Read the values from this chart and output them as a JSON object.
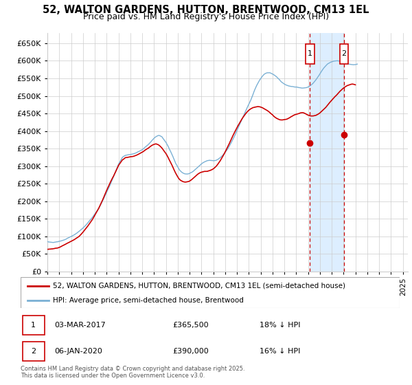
{
  "title": "52, WALTON GARDENS, HUTTON, BRENTWOOD, CM13 1EL",
  "subtitle": "Price paid vs. HM Land Registry's House Price Index (HPI)",
  "ylim": [
    0,
    680000
  ],
  "yticks": [
    0,
    50000,
    100000,
    150000,
    200000,
    250000,
    300000,
    350000,
    400000,
    450000,
    500000,
    550000,
    600000,
    650000
  ],
  "xmin": 1995.0,
  "xmax": 2025.42,
  "marker1_date": 2017.163,
  "marker2_date": 2020.016,
  "marker1_price": 365500,
  "marker2_price": 390000,
  "annotation1": [
    "1",
    "03-MAR-2017",
    "£365,500",
    "18% ↓ HPI"
  ],
  "annotation2": [
    "2",
    "06-JAN-2020",
    "£390,000",
    "16% ↓ HPI"
  ],
  "legend_line1": "52, WALTON GARDENS, HUTTON, BRENTWOOD, CM13 1EL (semi-detached house)",
  "legend_line2": "HPI: Average price, semi-detached house, Brentwood",
  "footer": "Contains HM Land Registry data © Crown copyright and database right 2025.\nThis data is licensed under the Open Government Licence v3.0.",
  "line_color_red": "#cc0000",
  "line_color_blue": "#7ab0d4",
  "shade_color": "#ddeeff",
  "grid_color": "#cccccc",
  "background_color": "#ffffff",
  "hpi_smooth": {
    "x_start": 1995.0,
    "x_step": 0.08333,
    "y": [
      85000,
      84000,
      83500,
      83000,
      82500,
      82000,
      81500,
      82000,
      82500,
      83000,
      83500,
      84000,
      85000,
      86000,
      87000,
      88000,
      89000,
      90000,
      91500,
      93000,
      94500,
      96000,
      97500,
      99000,
      100500,
      102000,
      103500,
      105000,
      107000,
      109000,
      111000,
      113000,
      115000,
      117500,
      120000,
      122500,
      125000,
      128000,
      131000,
      134000,
      137000,
      140500,
      144000,
      147500,
      151000,
      154500,
      158000,
      162000,
      166000,
      170000,
      174000,
      178000,
      182000,
      187500,
      193000,
      198500,
      204000,
      210000,
      216000,
      222000,
      228000,
      234000,
      240000,
      246000,
      252500,
      259000,
      265500,
      272000,
      279000,
      286000,
      293000,
      300000,
      307000,
      312000,
      317000,
      322000,
      327000,
      329000,
      331000,
      333000,
      333500,
      334000,
      334500,
      335000,
      335500,
      336000,
      336500,
      337000,
      338000,
      339000,
      340000,
      341500,
      343000,
      344500,
      346000,
      347500,
      349000,
      351500,
      354000,
      356500,
      359000,
      361500,
      364000,
      367000,
      370000,
      373000,
      376000,
      379000,
      382000,
      384500,
      387000,
      388500,
      390000,
      390000,
      389000,
      387500,
      386000,
      382000,
      378000,
      374000,
      370000,
      365000,
      360000,
      354000,
      348000,
      342000,
      336000,
      330000,
      323000,
      316500,
      310000,
      305000,
      300000,
      295500,
      291000,
      288000,
      285500,
      283500,
      282000,
      281000,
      280500,
      280000,
      280500,
      281000,
      282000,
      283500,
      285000,
      287000,
      289000,
      291500,
      294000,
      296500,
      299000,
      301500,
      304000,
      306500,
      309000,
      311000,
      313000,
      314500,
      316000,
      317000,
      318000,
      318500,
      319000,
      318500,
      318000,
      317500,
      317000,
      317500,
      318000,
      319000,
      320500,
      322000,
      324000,
      326000,
      328500,
      331000,
      334000,
      337000,
      340500,
      344000,
      348000,
      352000,
      357000,
      362000,
      367000,
      372500,
      378000,
      384000,
      390000,
      396500,
      403000,
      409500,
      416000,
      422000,
      428000,
      434500,
      441000,
      447500,
      454000,
      460000,
      466000,
      472000,
      478000,
      484000,
      490000,
      497000,
      504000,
      511000,
      518000,
      524000,
      530000,
      535000,
      540000,
      545000,
      549000,
      553000,
      557000,
      560000,
      562000,
      564000,
      565000,
      566000,
      566000,
      566000,
      565000,
      564000,
      562500,
      561000,
      559000,
      557000,
      555000,
      552000,
      549000,
      546000,
      543000,
      540000,
      538000,
      536000,
      534000,
      532500,
      531000,
      530000,
      529000,
      528500,
      528000,
      527500,
      527000,
      526500,
      526000,
      525500,
      525000,
      524500,
      524000,
      523500,
      523000,
      522500,
      522000,
      522000,
      522500,
      523000,
      524000,
      525000,
      526500,
      528000,
      530000,
      532000,
      534500,
      537000,
      540000,
      543500,
      547000,
      551000,
      555000,
      559500,
      564000,
      568500,
      573000,
      577000,
      581000,
      584000,
      587000,
      590000,
      592000,
      594000,
      595500,
      597000,
      598000,
      599000,
      600000,
      600500,
      601000,
      601000,
      601000,
      600500,
      600000,
      599000,
      598000,
      597000,
      596000,
      595000,
      594000,
      593000,
      592000,
      591000,
      590500,
      590000,
      589500,
      589000,
      589000,
      589000,
      589000,
      589500,
      590000
    ]
  },
  "price_smooth": {
    "x_start": 1995.0,
    "x_step": 0.08333,
    "y": [
      63000,
      63000,
      63500,
      63500,
      64000,
      64000,
      64500,
      65000,
      65500,
      66000,
      66500,
      67000,
      68000,
      69000,
      70500,
      72000,
      73500,
      75000,
      76500,
      78000,
      79500,
      81000,
      82500,
      84000,
      85500,
      87000,
      88500,
      90000,
      92000,
      94000,
      96000,
      98000,
      100000,
      103000,
      106000,
      109000,
      112000,
      115500,
      119000,
      122500,
      126000,
      130000,
      134000,
      138000,
      142000,
      146000,
      150000,
      155000,
      160000,
      165000,
      170000,
      175000,
      180000,
      186000,
      192000,
      198000,
      204000,
      210500,
      217000,
      223500,
      230000,
      236000,
      242000,
      248000,
      254000,
      260000,
      265500,
      271000,
      277000,
      283000,
      289000,
      295000,
      301000,
      305000,
      309000,
      313000,
      317000,
      319000,
      321000,
      323000,
      323500,
      324000,
      324500,
      325000,
      325500,
      326000,
      326500,
      327000,
      328000,
      329000,
      330000,
      331500,
      333000,
      334500,
      336000,
      337500,
      339000,
      341000,
      343000,
      345000,
      347000,
      348500,
      350000,
      352000,
      354000,
      356000,
      357500,
      359000,
      360000,
      360500,
      361000,
      360000,
      359000,
      357000,
      355000,
      352500,
      350000,
      346000,
      342000,
      338000,
      334000,
      329000,
      324000,
      318500,
      313000,
      307500,
      302000,
      296000,
      290000,
      284000,
      278500,
      273000,
      268500,
      264000,
      261000,
      258500,
      257000,
      255500,
      254500,
      254000,
      254000,
      254500,
      255000,
      256000,
      257500,
      259000,
      261000,
      263500,
      266000,
      268500,
      271000,
      273500,
      276000,
      278000,
      280000,
      281500,
      283000,
      284000,
      284500,
      285000,
      285000,
      285000,
      285000,
      285500,
      286000,
      287000,
      288500,
      290000,
      292000,
      294000,
      297000,
      300000,
      303500,
      307000,
      311000,
      315000,
      319500,
      324000,
      329000,
      334000,
      339500,
      345000,
      351000,
      357000,
      363000,
      369000,
      375000,
      381000,
      387000,
      393000,
      398500,
      404000,
      409500,
      415000,
      420000,
      425000,
      430000,
      434500,
      439000,
      443000,
      447000,
      450500,
      454000,
      457000,
      459500,
      462000,
      464000,
      465500,
      467000,
      468000,
      469000,
      470000,
      470500,
      471000,
      471000,
      470500,
      470000,
      469000,
      468000,
      466500,
      465000,
      463500,
      462000,
      460000,
      458000,
      455500,
      453000,
      450500,
      448000,
      445500,
      443000,
      441000,
      439000,
      437500,
      436000,
      435000,
      434500,
      434000,
      434000,
      434500,
      435000,
      435500,
      436000,
      437000,
      438500,
      440000,
      441500,
      443000,
      444500,
      446000,
      447500,
      449000,
      450000,
      451000,
      452000,
      453000,
      454000,
      454500,
      455000,
      454500,
      454000,
      452500,
      451000,
      449500,
      448000,
      447000,
      446000,
      445500,
      445000,
      445000,
      445500,
      446000,
      447000,
      448500,
      450000,
      452000,
      454000,
      456500,
      459000,
      461500,
      464000,
      467000,
      470000,
      473500,
      477000,
      480500,
      484000,
      487000,
      490000,
      493000,
      496000,
      499000,
      502000,
      505000,
      508000,
      511000,
      514000,
      517000,
      519500,
      522000,
      524000,
      526000,
      528000,
      529500,
      531000,
      532000,
      533000,
      533500,
      534000,
      534000,
      533500,
      533000,
      532000
    ]
  }
}
